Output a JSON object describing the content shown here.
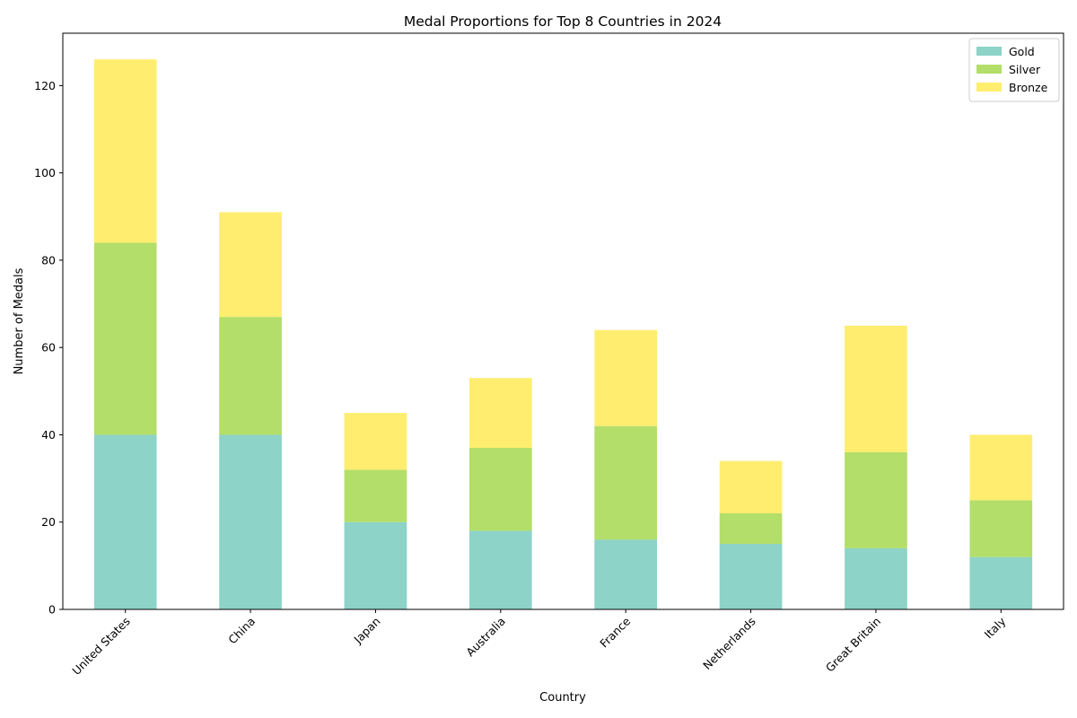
{
  "chart_data": {
    "type": "bar",
    "stacked": true,
    "title": "Medal Proportions for Top 8 Countries in 2024",
    "xlabel": "Country",
    "ylabel": "Number of Medals",
    "ylim": [
      0,
      132
    ],
    "yticks": [
      0,
      20,
      40,
      60,
      80,
      100,
      120
    ],
    "grid": false,
    "legend_position": "top-right",
    "categories": [
      "United States",
      "China",
      "Japan",
      "Australia",
      "France",
      "Netherlands",
      "Great Britain",
      "Italy"
    ],
    "series": [
      {
        "name": "Gold",
        "color": "#8dd3c7",
        "values": [
          40,
          40,
          20,
          18,
          16,
          15,
          14,
          12
        ]
      },
      {
        "name": "Silver",
        "color": "#b3de69",
        "values": [
          44,
          27,
          12,
          19,
          26,
          7,
          22,
          13
        ]
      },
      {
        "name": "Bronze",
        "color": "#ffed6f",
        "values": [
          42,
          24,
          13,
          16,
          22,
          12,
          29,
          15
        ]
      }
    ]
  }
}
